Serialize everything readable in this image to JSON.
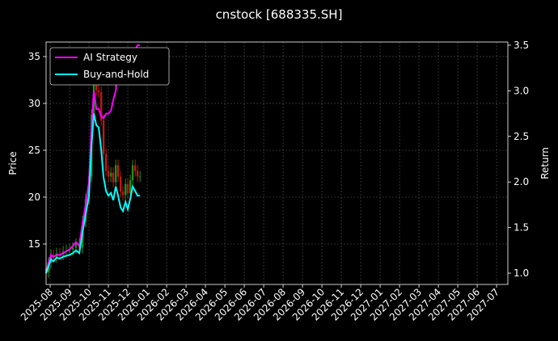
{
  "chart_data": {
    "type": "candlestick",
    "title": "cnstock [688335.SH]",
    "ylabel": "Price",
    "y2label": "Return",
    "x": [
      -0.21,
      -0.08,
      0.04,
      0.17,
      0.33,
      0.5,
      0.67,
      0.83,
      1.0,
      1.17,
      1.33,
      1.5,
      1.67,
      1.83,
      2.0,
      2.13,
      2.25,
      2.38,
      2.5,
      2.63,
      2.75,
      2.88,
      3.0,
      3.13,
      3.25,
      3.38,
      3.5,
      3.63,
      3.75,
      3.88,
      4.0,
      4.13,
      4.25,
      4.38,
      4.5,
      4.63
    ],
    "open": [
      12.4,
      12,
      13,
      13.8,
      13.6,
      14,
      13.9,
      14.2,
      14.3,
      14.4,
      14.6,
      15,
      14.6,
      17.4,
      19.8,
      22.2,
      28.8,
      33,
      31.4,
      31.2,
      28.2,
      24.6,
      22.8,
      22.2,
      22.6,
      21.6,
      23.4,
      22.2,
      20.6,
      20.2,
      21.4,
      20.4,
      21.8,
      23.4,
      22.8,
      22.2
    ],
    "high": [
      13.0,
      13.6,
      14.4,
      14.4,
      14.6,
      14.6,
      14.8,
      14.9,
      15.0,
      15.2,
      15.6,
      15.6,
      18.0,
      20.4,
      22.8,
      29.4,
      33.6,
      33.6,
      32.0,
      31.8,
      28.8,
      25.2,
      23.4,
      23.2,
      23.2,
      24.0,
      24.0,
      22.8,
      21.2,
      22.0,
      22.0,
      22.4,
      24.0,
      24.0,
      23.4,
      22.8
    ],
    "low": [
      11.4,
      11.4,
      12.4,
      13.0,
      13.0,
      13.3,
      13.3,
      13.6,
      13.7,
      13.8,
      14.0,
      14.0,
      14.0,
      16.8,
      19.2,
      21.6,
      28.2,
      30.8,
      30.6,
      27.6,
      24.0,
      22.2,
      21.6,
      21.6,
      21.0,
      21.0,
      21.6,
      20.0,
      19.6,
      19.6,
      19.8,
      19.8,
      21.2,
      22.2,
      21.6,
      21.6
    ],
    "close": [
      12,
      13,
      13.8,
      13.6,
      14,
      13.9,
      14.2,
      14.3,
      14.4,
      14.6,
      15,
      14.6,
      17.4,
      19.8,
      22.2,
      28.8,
      33,
      31.4,
      31.2,
      28.2,
      24.6,
      22.8,
      22.2,
      22.6,
      21.6,
      23.4,
      22.2,
      20.6,
      20.2,
      21.4,
      20.4,
      21.8,
      23.4,
      22.8,
      22.2,
      22.2
    ],
    "color_up": "#1f8f1f",
    "color_down": "#c01818",
    "series": [
      {
        "name": "AI Strategy",
        "color": "#ff00ff",
        "axis": "y2",
        "values": [
          1.0,
          1.12,
          1.2,
          1.18,
          1.2,
          1.2,
          1.22,
          1.24,
          1.26,
          1.3,
          1.34,
          1.3,
          1.55,
          1.75,
          2.0,
          2.6,
          3.0,
          2.8,
          2.8,
          2.72,
          2.7,
          2.75,
          2.75,
          2.78,
          2.9,
          3.0,
          3.3,
          3.25,
          3.25,
          3.3,
          3.3,
          3.3,
          3.35,
          3.45,
          3.5,
          3.5
        ]
      },
      {
        "name": "Buy-and-Hold",
        "color": "#00ffff",
        "axis": "y2",
        "values": [
          1.0,
          1.08,
          1.15,
          1.13,
          1.17,
          1.16,
          1.18,
          1.19,
          1.2,
          1.22,
          1.25,
          1.22,
          1.45,
          1.65,
          1.85,
          2.4,
          2.75,
          2.62,
          2.6,
          2.35,
          2.05,
          1.9,
          1.85,
          1.88,
          1.8,
          1.95,
          1.85,
          1.72,
          1.68,
          1.78,
          1.7,
          1.82,
          1.95,
          1.9,
          1.85,
          1.85
        ]
      }
    ],
    "xlim": [
      -0.21,
      23.58
    ],
    "xticks": [
      {
        "value": 0,
        "label": "2025-08"
      },
      {
        "value": 1,
        "label": "2025-09"
      },
      {
        "value": 2,
        "label": "2025-10"
      },
      {
        "value": 3,
        "label": "2025-11"
      },
      {
        "value": 4,
        "label": "2025-12"
      },
      {
        "value": 5,
        "label": "2026-01"
      },
      {
        "value": 6,
        "label": "2026-02"
      },
      {
        "value": 7,
        "label": "2026-03"
      },
      {
        "value": 8,
        "label": "2026-04"
      },
      {
        "value": 9,
        "label": "2026-05"
      },
      {
        "value": 10,
        "label": "2026-06"
      },
      {
        "value": 11,
        "label": "2026-07"
      },
      {
        "value": 12,
        "label": "2026-08"
      },
      {
        "value": 13,
        "label": "2026-09"
      },
      {
        "value": 14,
        "label": "2026-10"
      },
      {
        "value": 15,
        "label": "2026-11"
      },
      {
        "value": 16,
        "label": "2026-12"
      },
      {
        "value": 17,
        "label": "2027-01"
      },
      {
        "value": 18,
        "label": "2027-02"
      },
      {
        "value": 19,
        "label": "2027-03"
      },
      {
        "value": 20,
        "label": "2027-04"
      },
      {
        "value": 21,
        "label": "2027-05"
      },
      {
        "value": 22,
        "label": "2027-06"
      },
      {
        "value": 23,
        "label": "2027-07"
      }
    ],
    "ylim": [
      10.69,
      36.55
    ],
    "yticks": [
      15,
      20,
      25,
      30,
      35
    ],
    "y2lim": [
      0.876,
      3.535
    ],
    "y2ticks": [
      {
        "value": 1,
        "label": "1.0"
      },
      1.5,
      {
        "value": 2,
        "label": "2.0"
      },
      2.5,
      {
        "value": 3,
        "label": "3.0"
      },
      3.5
    ],
    "grid": true,
    "legend": "upper left"
  }
}
